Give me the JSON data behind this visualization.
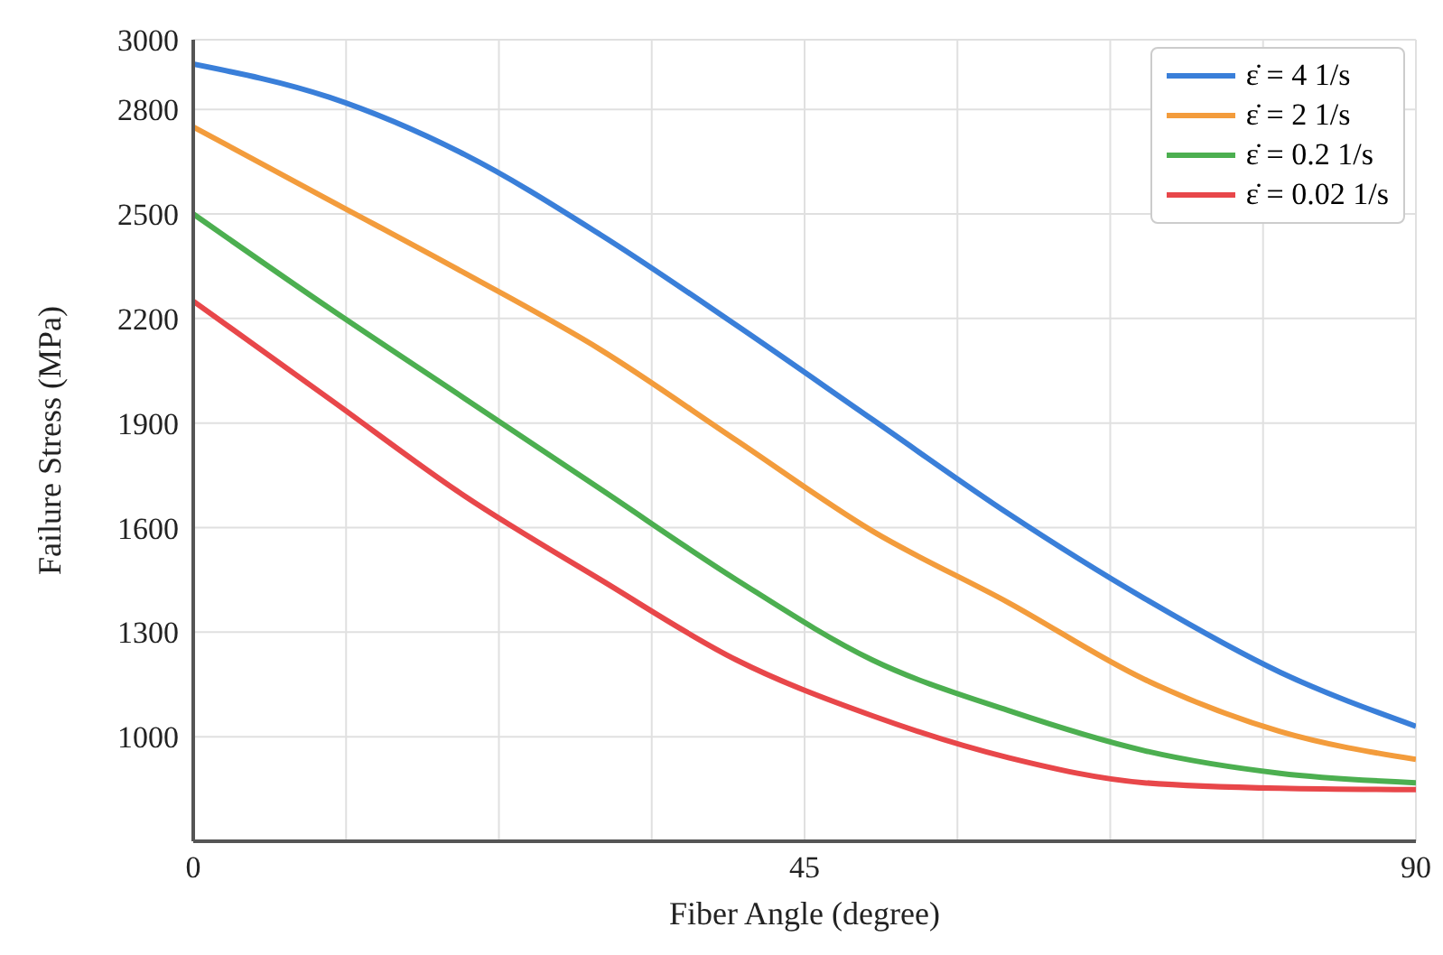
{
  "chart_data": {
    "type": "line",
    "xlabel": "Fiber Angle (degree)",
    "ylabel": "Failure Stress (MPa)",
    "x": [
      0,
      10,
      20,
      30,
      40,
      50,
      60,
      70,
      80,
      90
    ],
    "xlim": [
      0,
      90
    ],
    "xticks": [
      0,
      {
        "value": 11.25,
        "label": null
      },
      {
        "value": 22.5,
        "label": null
      },
      {
        "value": 33.75,
        "label": null
      },
      45,
      {
        "value": 56.25,
        "label": null
      },
      {
        "value": 67.5,
        "label": null
      },
      {
        "value": 78.75,
        "label": null
      },
      90
    ],
    "ylim": [
      700,
      3000
    ],
    "yticks": [
      {
        "value": 700,
        "label": null
      },
      1000,
      1300,
      1600,
      1900,
      2200,
      2500,
      2800,
      3000
    ],
    "grid": true,
    "legend": "top right",
    "marker": "none",
    "line_style": "solid",
    "series": [
      {
        "name": "ε̇ = 4 1/s",
        "color": "#3a7fd9",
        "values": [
          2930,
          2835,
          2670,
          2440,
          2180,
          1910,
          1640,
          1397,
          1185,
          1030
        ]
      },
      {
        "name": "ε̇ = 2 1/s",
        "color": "#f39c3c",
        "values": [
          2750,
          2540,
          2330,
          2110,
          1850,
          1590,
          1385,
          1165,
          1015,
          935
        ]
      },
      {
        "name": "ε̇ = 0.2 1/s",
        "color": "#4caf50",
        "values": [
          2500,
          2230,
          1970,
          1710,
          1450,
          1220,
          1075,
          960,
          895,
          868
        ]
      },
      {
        "name": "ε̇ = 0.02 1/s",
        "color": "#e8474a",
        "values": [
          2250,
          1970,
          1690,
          1450,
          1220,
          1060,
          940,
          868,
          852,
          848
        ]
      }
    ]
  }
}
